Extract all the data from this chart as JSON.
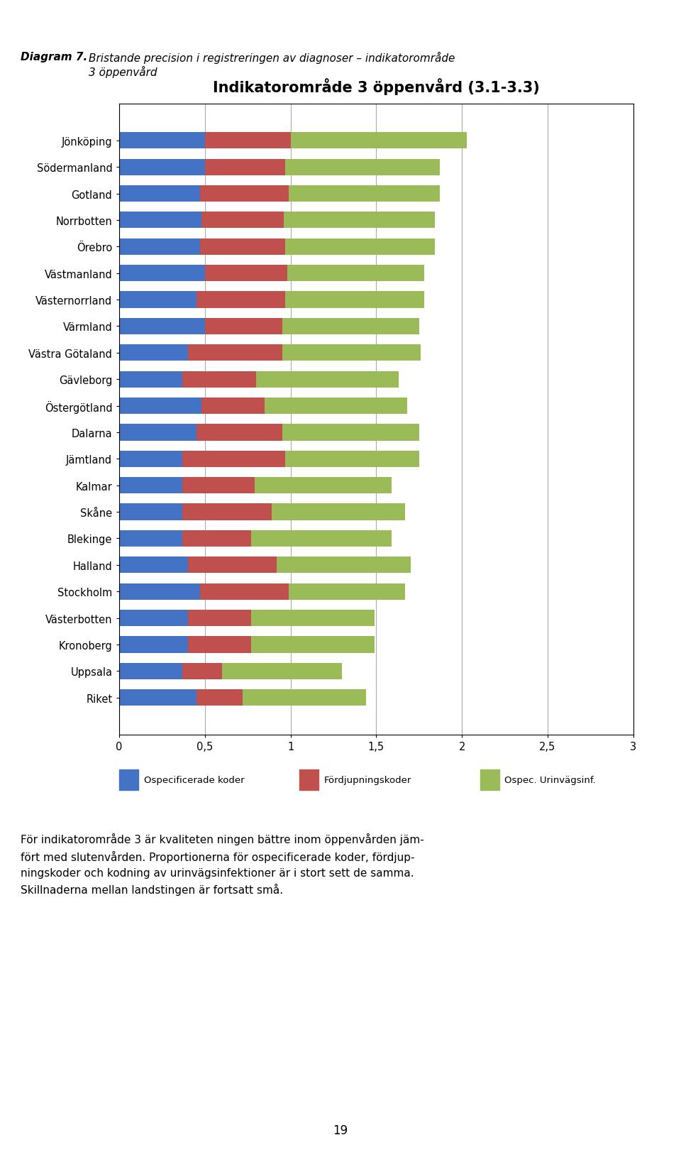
{
  "title": "Indikatorområde 3 öppenvård (3.1-3.3)",
  "categories": [
    "Jönköping",
    "Södermanland",
    "Gotland",
    "Norrbotten",
    "Örebro",
    "Västmanland",
    "Västernorrland",
    "Värmland",
    "Västra Götaland",
    "Gävleborg",
    "Östergötland",
    "Dalarna",
    "Jämtland",
    "Kalmar",
    "Skåne",
    "Blekinge",
    "Halland",
    "Stockholm",
    "Västerbotten",
    "Kronoberg",
    "Uppsala",
    "Riket"
  ],
  "blue": [
    0.5,
    0.5,
    0.47,
    0.48,
    0.47,
    0.5,
    0.45,
    0.5,
    0.4,
    0.37,
    0.48,
    0.45,
    0.37,
    0.37,
    0.37,
    0.37,
    0.4,
    0.47,
    0.4,
    0.4,
    0.37,
    0.45
  ],
  "red": [
    0.5,
    0.47,
    0.52,
    0.48,
    0.5,
    0.48,
    0.52,
    0.45,
    0.55,
    0.43,
    0.37,
    0.5,
    0.6,
    0.42,
    0.52,
    0.4,
    0.52,
    0.52,
    0.37,
    0.37,
    0.23,
    0.27
  ],
  "green": [
    1.03,
    0.9,
    0.88,
    0.88,
    0.87,
    0.8,
    0.81,
    0.8,
    0.81,
    0.83,
    0.83,
    0.8,
    0.78,
    0.8,
    0.78,
    0.82,
    0.78,
    0.68,
    0.72,
    0.72,
    0.7,
    0.72
  ],
  "blue_color": "#4472C4",
  "red_color": "#C0504D",
  "green_color": "#9BBB59",
  "legend_labels": [
    "Ospecificerade koder",
    "Fördjupningskoder",
    "Ospec. Urinvägsinf."
  ],
  "diagram_label": "Diagram 7.",
  "diagram_caption": "Bristande precision i registreringen av diagnoser – indikatorområde\n3 öppenvård",
  "body_text": "För indikatorområde 3 är kvaliteten ningen bättre inom öppenvården jäm-\nfört med slutenvården. Proportionerna för ospecificerade koder, fördjup-\nningskoder och kodning av urinvägsinfektioner är i stort sett de samma.\nSkillnaderna mellan landstingen är fortsatt små.",
  "page_number": "19"
}
